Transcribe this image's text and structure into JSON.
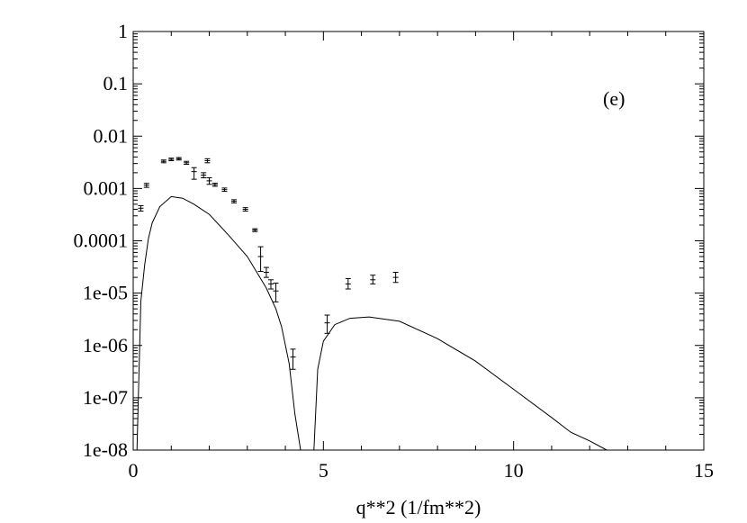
{
  "chart_data": {
    "type": "scatter",
    "title": "",
    "xlabel": "q**2 (1/fm**2)",
    "ylabel": "",
    "annotation": "(e)",
    "xlim": [
      0,
      15
    ],
    "ylim": [
      1e-08,
      1
    ],
    "yscale": "log",
    "grid": false,
    "x_ticks": [
      0,
      5,
      10,
      15
    ],
    "x_tick_labels": [
      "0",
      "5",
      "10",
      "15"
    ],
    "y_ticks": [
      1,
      0.1,
      0.01,
      0.001,
      0.0001,
      1e-05,
      1e-06,
      1e-07,
      1e-08
    ],
    "y_tick_labels": [
      "1",
      "0.1",
      "0.01",
      "0.001",
      "0.0001",
      "1e-05",
      "1e-06",
      "1e-07",
      "1e-08"
    ],
    "series": [
      {
        "kind": "points_with_errorbars",
        "points": [
          {
            "x": 0.2,
            "y": 0.00042,
            "ylo": 0.00037,
            "yhi": 0.00047
          },
          {
            "x": 0.35,
            "y": 0.00115,
            "ylo": 0.00105,
            "yhi": 0.00125
          },
          {
            "x": 0.8,
            "y": 0.0033,
            "ylo": 0.0031,
            "yhi": 0.0035
          },
          {
            "x": 1.0,
            "y": 0.0036,
            "ylo": 0.0034,
            "yhi": 0.0038
          },
          {
            "x": 1.2,
            "y": 0.0037,
            "ylo": 0.0035,
            "yhi": 0.0039
          },
          {
            "x": 1.4,
            "y": 0.0031,
            "ylo": 0.0029,
            "yhi": 0.0033
          },
          {
            "x": 1.6,
            "y": 0.0021,
            "ylo": 0.0015,
            "yhi": 0.0025
          },
          {
            "x": 1.85,
            "y": 0.0018,
            "ylo": 0.0016,
            "yhi": 0.002
          },
          {
            "x": 1.95,
            "y": 0.0034,
            "ylo": 0.0031,
            "yhi": 0.0037
          },
          {
            "x": 2.0,
            "y": 0.0014,
            "ylo": 0.0012,
            "yhi": 0.0016
          },
          {
            "x": 2.15,
            "y": 0.00118,
            "ylo": 0.0011,
            "yhi": 0.00126
          },
          {
            "x": 2.4,
            "y": 0.00095,
            "ylo": 0.00088,
            "yhi": 0.00102
          },
          {
            "x": 2.65,
            "y": 0.00057,
            "ylo": 0.00053,
            "yhi": 0.00061
          },
          {
            "x": 2.95,
            "y": 0.0004,
            "ylo": 0.00037,
            "yhi": 0.00043
          },
          {
            "x": 3.2,
            "y": 0.00016,
            "ylo": 0.00015,
            "yhi": 0.00017
          },
          {
            "x": 3.35,
            "y": 5e-05,
            "ylo": 2.6e-05,
            "yhi": 7.7e-05
          },
          {
            "x": 3.5,
            "y": 2.5e-05,
            "ylo": 2e-05,
            "yhi": 3.1e-05
          },
          {
            "x": 3.62,
            "y": 1.5e-05,
            "ylo": 1.2e-05,
            "yhi": 1.8e-05
          },
          {
            "x": 3.75,
            "y": 1.1e-05,
            "ylo": 6.8e-06,
            "yhi": 1.55e-05
          },
          {
            "x": 4.2,
            "y": 6e-07,
            "ylo": 3.5e-07,
            "yhi": 8.5e-07
          },
          {
            "x": 5.1,
            "y": 2.7e-06,
            "ylo": 1.7e-06,
            "yhi": 3.8e-06
          },
          {
            "x": 5.65,
            "y": 1.5e-05,
            "ylo": 1.2e-05,
            "yhi": 1.9e-05
          },
          {
            "x": 6.3,
            "y": 1.8e-05,
            "ylo": 1.5e-05,
            "yhi": 2.2e-05
          },
          {
            "x": 6.9,
            "y": 2e-05,
            "ylo": 1.6e-05,
            "yhi": 2.5e-05
          }
        ]
      },
      {
        "kind": "line",
        "x": [
          0.1,
          0.2,
          0.3,
          0.4,
          0.5,
          0.7,
          1.0,
          1.3,
          1.6,
          2.0,
          2.5,
          3.0,
          3.5,
          3.75,
          3.9,
          4.1,
          4.25,
          4.4,
          4.5,
          4.55,
          4.6,
          4.75,
          4.85,
          5.0,
          5.3,
          5.7,
          6.2,
          7.0,
          8.0,
          9.0,
          10.0,
          11.0,
          11.5,
          12.0,
          12.45
        ],
        "y": [
          1e-08,
          7e-06,
          3.4e-05,
          0.00011,
          0.00022,
          0.00045,
          0.0007,
          0.00065,
          0.0005,
          0.00032,
          0.00013,
          5e-05,
          1.25e-05,
          5e-06,
          2.3e-06,
          4.5e-07,
          5e-08,
          1e-08,
          1e-08,
          1e-08,
          1e-08,
          1e-08,
          3.5e-07,
          1.2e-06,
          2.5e-06,
          3.3e-06,
          3.5e-06,
          2.9e-06,
          1.35e-06,
          5e-07,
          1.45e-07,
          4.2e-08,
          2.2e-08,
          1.5e-08,
          1e-08
        ]
      }
    ]
  }
}
